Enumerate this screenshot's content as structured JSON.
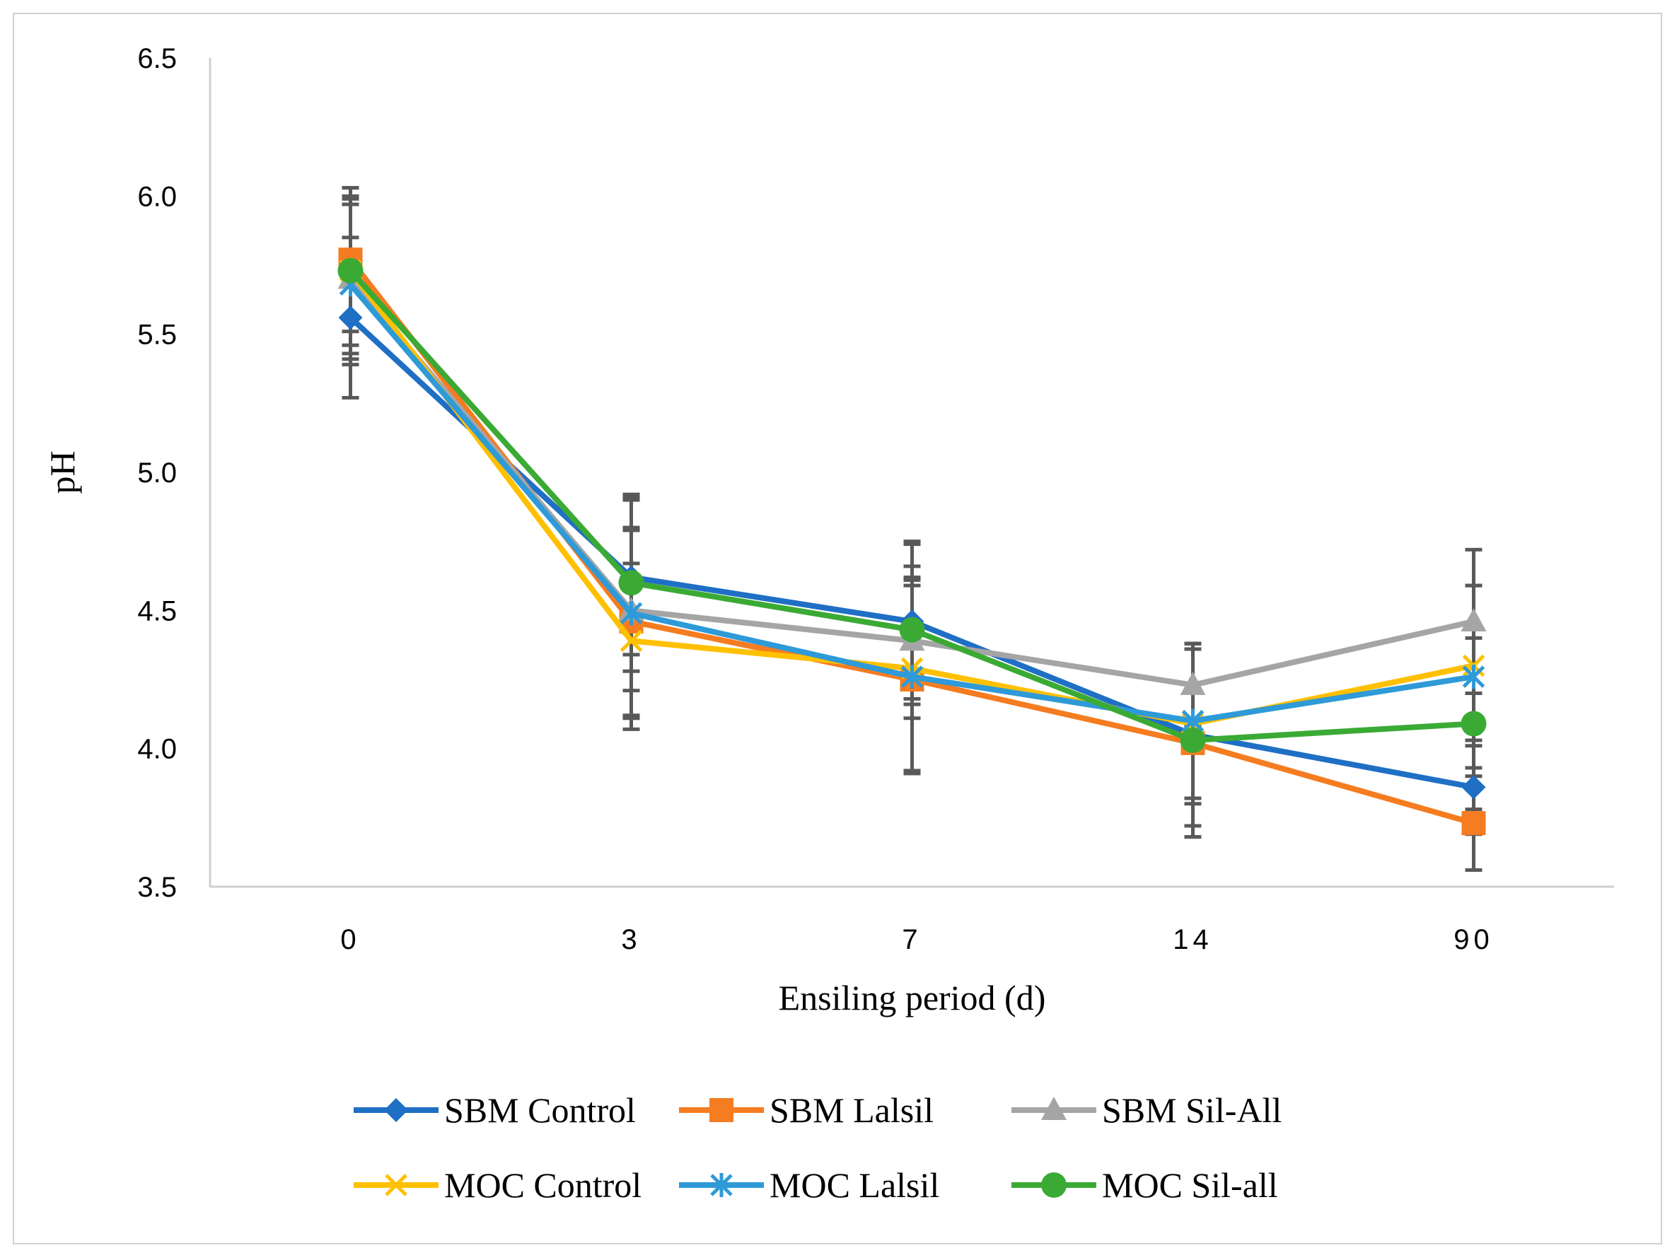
{
  "chart_data": {
    "type": "line",
    "title": "",
    "xlabel": "Ensiling period (d)",
    "ylabel": "pH",
    "categories": [
      "0",
      "3",
      "7",
      "14",
      "90"
    ],
    "ylim": [
      3.5,
      6.5
    ],
    "yticks": [
      "3.5",
      "4.0",
      "4.5",
      "5.0",
      "5.5",
      "6.0",
      "6.5"
    ],
    "grid": false,
    "legend_position": "bottom",
    "series": [
      {
        "name": "SBM Control",
        "color": "#1f6fc5",
        "marker": "diamond",
        "values": [
          5.56,
          4.62,
          4.46,
          4.05,
          3.86
        ],
        "errors": [
          0.29,
          0.28,
          0.28,
          0.33,
          0.17
        ]
      },
      {
        "name": "SBM Lalsil",
        "color": "#f57c20",
        "marker": "square",
        "values": [
          5.77,
          4.46,
          4.25,
          4.02,
          3.73
        ],
        "errors": [
          0.26,
          0.34,
          0.34,
          0.34,
          0.17
        ]
      },
      {
        "name": "SBM Sil-All",
        "color": "#a5a5a5",
        "marker": "triangle",
        "values": [
          5.7,
          4.5,
          4.39,
          4.23,
          4.46
        ],
        "errors": [
          0.29,
          0.29,
          0.23,
          0.15,
          0.26
        ]
      },
      {
        "name": "MOC Control",
        "color": "#ffc000",
        "marker": "x",
        "values": [
          5.73,
          4.39,
          4.29,
          4.09,
          4.3
        ],
        "errors": [
          0.27,
          0.28,
          0.37,
          0.29,
          0.29
        ]
      },
      {
        "name": "MOC Lalsil",
        "color": "#2e9ad8",
        "marker": "asterisk",
        "values": [
          5.68,
          4.49,
          4.26,
          4.1,
          4.26
        ],
        "errors": [
          0.29,
          0.42,
          0.35,
          0.28,
          0.33
        ]
      },
      {
        "name": "MOC Sil-all",
        "color": "#3aaa35",
        "marker": "circle",
        "values": [
          5.73,
          4.6,
          4.43,
          4.03,
          4.09
        ],
        "errors": [
          0.3,
          0.32,
          0.32,
          0.35,
          0.31
        ]
      }
    ],
    "error_bar_color": "#595959"
  }
}
